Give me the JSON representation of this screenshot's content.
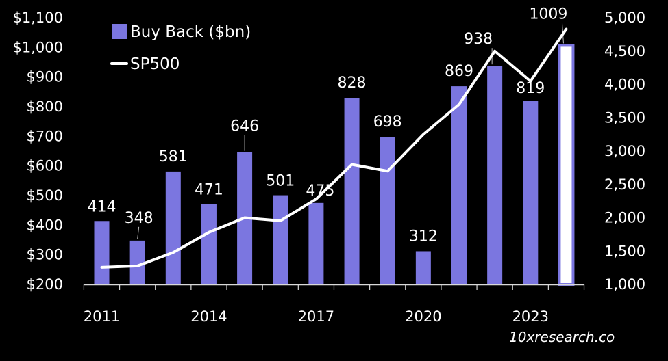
{
  "chart_data": {
    "type": "bar",
    "x": [
      2011,
      2012,
      2013,
      2014,
      2015,
      2016,
      2017,
      2018,
      2019,
      2020,
      2021,
      2022,
      2023,
      2024
    ],
    "x_tick_labels": [
      "2011",
      "2014",
      "2017",
      "2020",
      "2023"
    ],
    "series": [
      {
        "name": "Buy Back ($bn)",
        "type": "bar",
        "axis": "left",
        "values": [
          414,
          348,
          581,
          471,
          646,
          501,
          475,
          828,
          698,
          312,
          869,
          938,
          819,
          1009
        ],
        "labels": [
          "414",
          "348",
          "581",
          "471",
          "646",
          "501",
          "475",
          "828",
          "698",
          "312",
          "869",
          "938",
          "819",
          "1009"
        ]
      },
      {
        "name": "SP500",
        "type": "line",
        "axis": "right",
        "values": [
          1258,
          1278,
          1480,
          1782,
          2000,
          1955,
          2280,
          2800,
          2700,
          3250,
          3700,
          4500,
          4050,
          4830
        ]
      }
    ],
    "y_left": {
      "ylim": [
        200,
        1100
      ],
      "ticks": [
        200,
        300,
        400,
        500,
        600,
        700,
        800,
        900,
        1000,
        1100
      ],
      "tick_labels": [
        "$200",
        "$300",
        "$400",
        "$500",
        "$600",
        "$700",
        "$800",
        "$900",
        "$1,000",
        "$1,100"
      ]
    },
    "y_right": {
      "ylim": [
        1000,
        5000
      ],
      "ticks": [
        1000,
        1500,
        2000,
        2500,
        3000,
        3500,
        4000,
        4500,
        5000
      ],
      "tick_labels": [
        "1,000",
        "1,500",
        "2,000",
        "2,500",
        "3,000",
        "3,500",
        "4,000",
        "4,500",
        "5,000"
      ]
    },
    "legend": {
      "placement": "top-left"
    },
    "grid": false,
    "colors": {
      "bar": "#7b76e0",
      "highlight_fill": "#ffffff",
      "highlight_border": "#7b76e0",
      "highlight_label": "#8b87ec",
      "line": "#ffffff",
      "background": "#000000",
      "text": "#ffffff"
    },
    "highlight_index": 13,
    "watermark": "10xresearch.co"
  }
}
